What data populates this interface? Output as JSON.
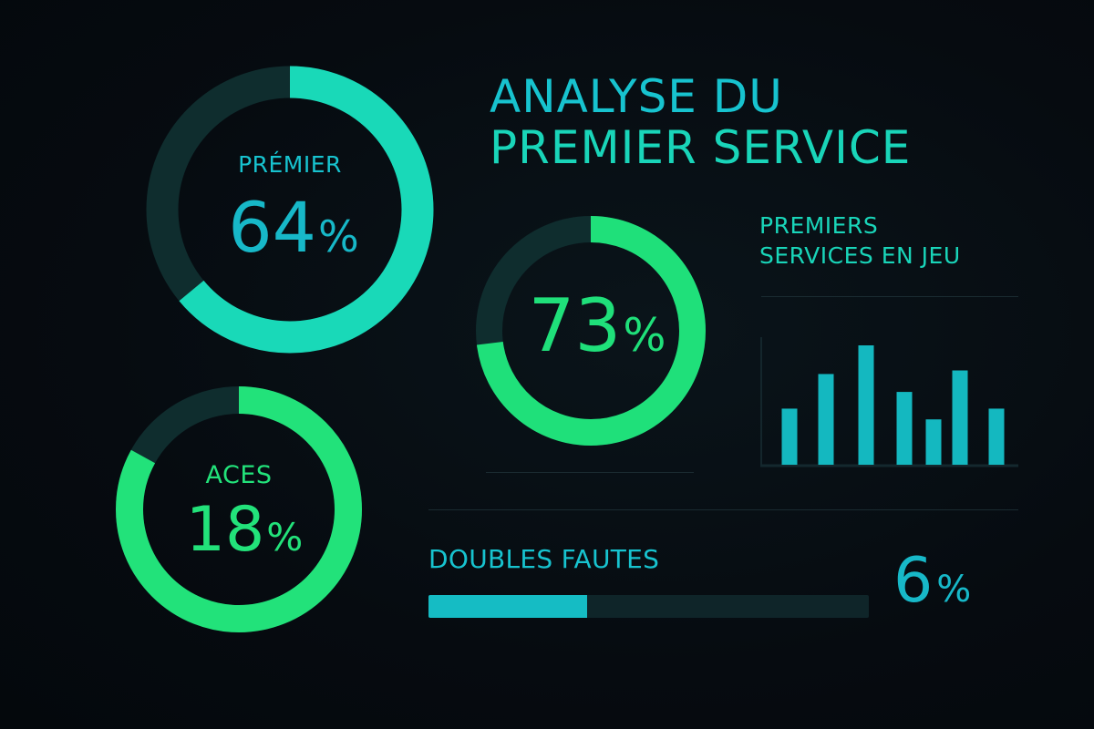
{
  "title": {
    "line1": "ANALYSE DU",
    "line2": "PREMIER SERVICE"
  },
  "colors": {
    "background": "#060b10",
    "teal": "#19d9b8",
    "cyan": "#17c3cf",
    "green": "#22e27a",
    "track": "#0f2d2e",
    "bar": "#14b8c0",
    "divider": "#1a2b31"
  },
  "donuts": [
    {
      "id": "premier",
      "label": "PRÉMIER",
      "value": "64",
      "unit": "%"
    },
    {
      "id": "aces",
      "label": "ACES",
      "value": "18",
      "unit": "%"
    },
    {
      "id": "in-play",
      "label": "",
      "value": "73",
      "unit": "%"
    }
  ],
  "bar_section": {
    "title_line1": "PREMIERS",
    "title_line2": "SERVICES EN JEU"
  },
  "double_faults": {
    "label": "DOUBLES FAUTES",
    "value": "6",
    "unit": "%"
  },
  "chart_data": [
    {
      "type": "pie",
      "subtype": "donut",
      "title": "PRÉMIER",
      "categories": [
        "Premier",
        "Reste"
      ],
      "values": [
        64,
        36
      ],
      "display_value": "64%",
      "colors": [
        "#19d9b8",
        "#0f2d2e"
      ]
    },
    {
      "type": "pie",
      "subtype": "donut",
      "title": "ACES",
      "categories": [
        "Aces",
        "Reste"
      ],
      "values": [
        18,
        82
      ],
      "display_value": "18%",
      "note": "ring fill visually drawn at ~83% despite 18% label",
      "colors": [
        "#22e27a",
        "#0f2d2e"
      ]
    },
    {
      "type": "pie",
      "subtype": "donut",
      "title": "",
      "categories": [
        "Premiers services en jeu",
        "Reste"
      ],
      "values": [
        73,
        27
      ],
      "display_value": "73%",
      "colors": [
        "#1fe07a",
        "#0f2d2e"
      ]
    },
    {
      "type": "bar",
      "title": "PREMIERS SERVICES EN JEU",
      "categories": [
        "1",
        "2",
        "3",
        "4",
        "5",
        "6",
        "7"
      ],
      "values": [
        47,
        76,
        100,
        61,
        38,
        79,
        47
      ],
      "xlabel": "",
      "ylabel": "",
      "ylim": [
        0,
        100
      ],
      "grid": false,
      "tick_labels": false,
      "color": "#14b8c0"
    },
    {
      "type": "bar",
      "subtype": "progress",
      "title": "DOUBLES FAUTES",
      "values": [
        6
      ],
      "display_value": "6%",
      "visual_fill_fraction": 0.36,
      "colors": [
        "#15bcc4",
        "#0f2529"
      ]
    }
  ]
}
